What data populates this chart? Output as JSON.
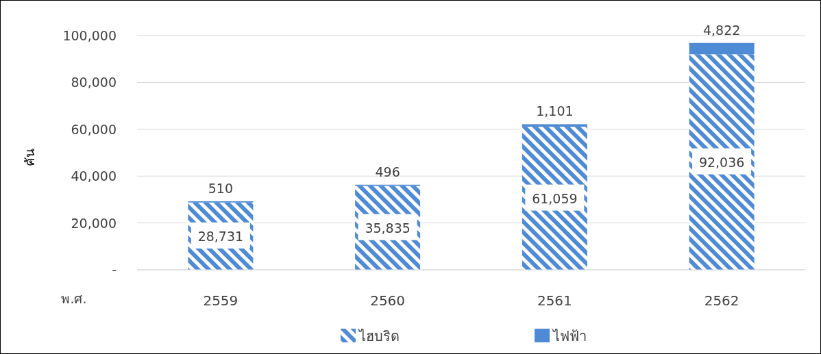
{
  "chart_data": {
    "type": "bar",
    "stacked": true,
    "xlabel": "พ.ศ.",
    "ylabel": "คัน",
    "categories": [
      "2559",
      "2560",
      "2561",
      "2562"
    ],
    "series": [
      {
        "name": "ไฮบริด",
        "color": "#4f8ad4",
        "values": [
          28731,
          35835,
          61059,
          92036
        ],
        "value_labels": [
          "28,731",
          "35,835",
          "61,059",
          "92,036"
        ]
      },
      {
        "name": "ไฟฟ้า",
        "color": "#4f8ad4",
        "values": [
          510,
          496,
          1101,
          4822
        ],
        "value_labels": [
          "510",
          "496",
          "1,101",
          "4,822"
        ]
      }
    ],
    "ylim": [
      0,
      100000
    ],
    "yticks": [
      {
        "value": 0,
        "label": "-"
      },
      {
        "value": 20000,
        "label": "20,000"
      },
      {
        "value": 40000,
        "label": "40,000"
      },
      {
        "value": 60000,
        "label": "60,000"
      },
      {
        "value": 80000,
        "label": "80,000"
      },
      {
        "value": 100000,
        "label": "100,000"
      }
    ],
    "grid": "y",
    "legend": "bottom"
  }
}
